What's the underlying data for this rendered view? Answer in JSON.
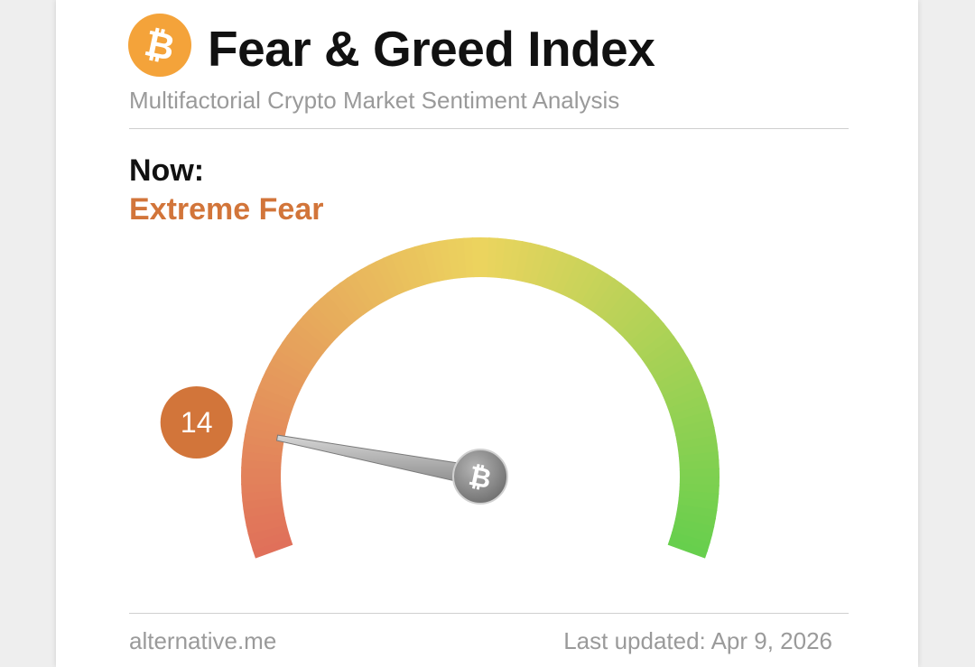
{
  "header": {
    "title": "Fear & Greed Index",
    "subtitle": "Multifactorial Crypto Market Sentiment Analysis",
    "logo_icon": "bitcoin-icon",
    "logo_color": "#f4a33a"
  },
  "status": {
    "now_label": "Now:",
    "classification": "Extreme Fear",
    "classification_color": "#d2753a"
  },
  "chart_data": {
    "type": "gauge",
    "value": 14,
    "value_label": "14",
    "min": 0,
    "max": 100,
    "needle_icon": "bitcoin-icon",
    "colors": {
      "fear": "#e0705a",
      "neutral": "#ecd45e",
      "greed": "#67cf4d",
      "badge": "#d2753a"
    }
  },
  "footer": {
    "source": "alternative.me",
    "last_updated": "Last updated: Apr 9, 2026"
  }
}
